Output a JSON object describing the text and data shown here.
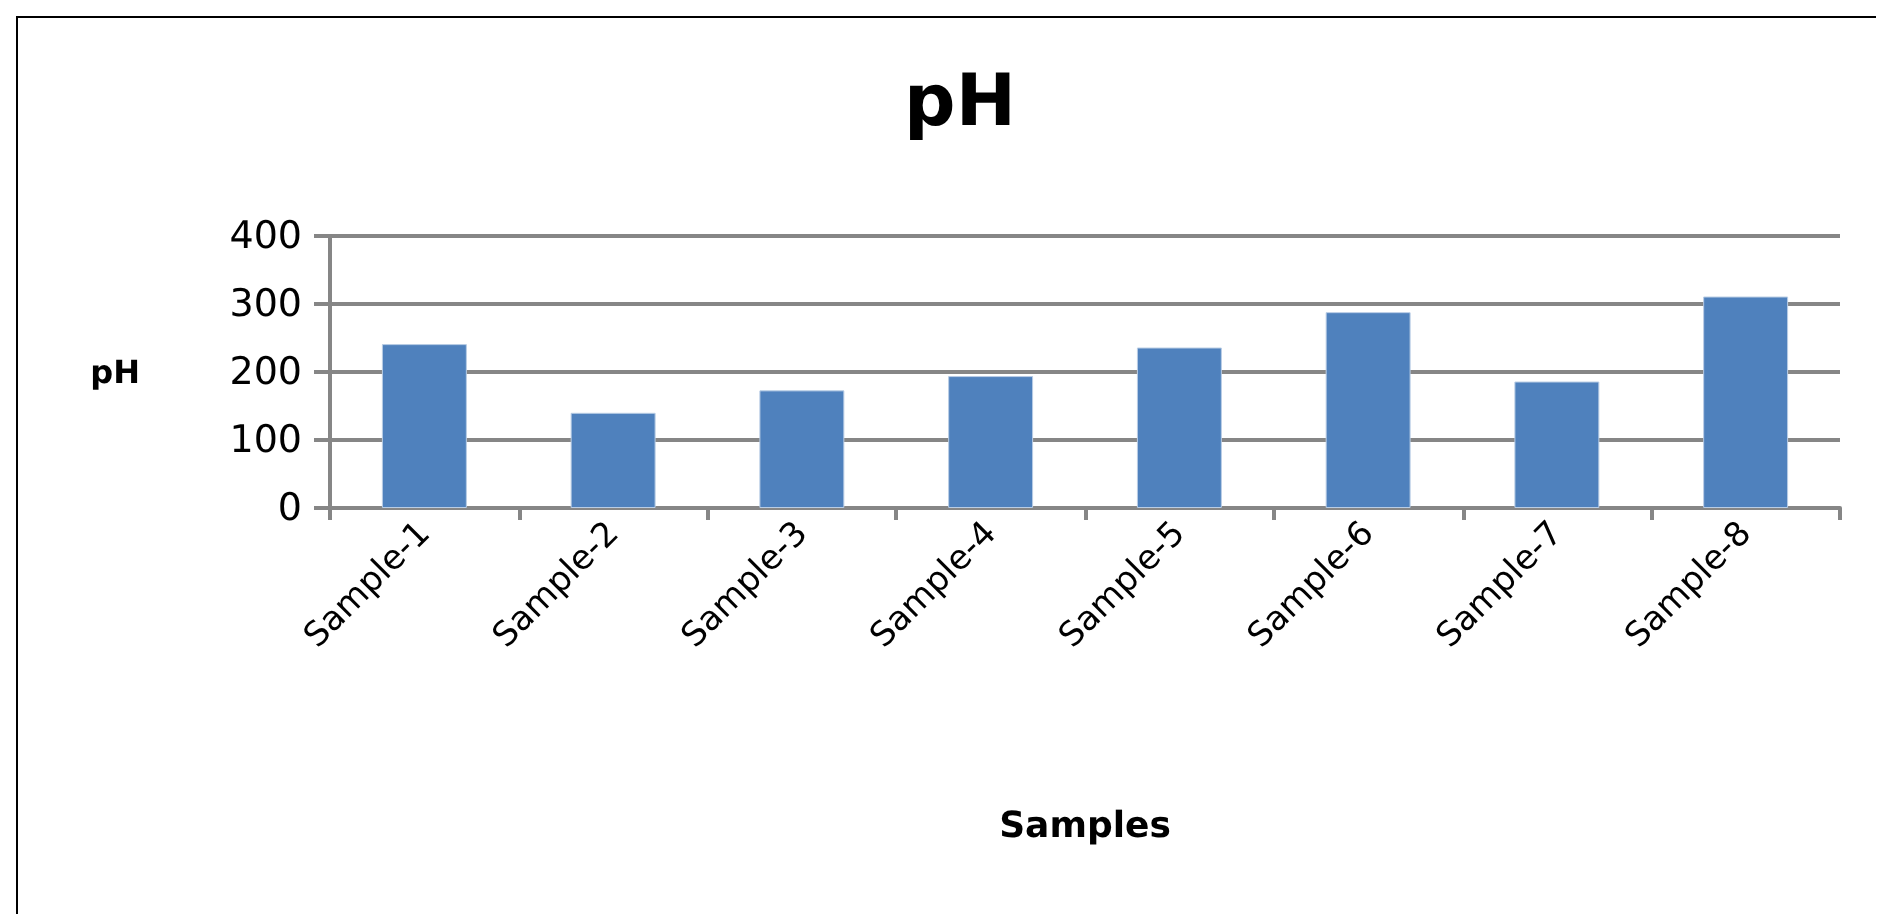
{
  "chart_data": {
    "type": "bar",
    "title": "pH",
    "xlabel": "Samples",
    "ylabel": "pH",
    "categories": [
      "Sample-1",
      "Sample-2",
      "Sample-3",
      "Sample-4",
      "Sample-5",
      "Sample-6",
      "Sample-7",
      "Sample-8"
    ],
    "values": [
      241,
      140,
      173,
      194,
      236,
      288,
      186,
      311
    ],
    "color": "#4f81bd",
    "ylim": [
      0,
      400
    ],
    "yticks": [
      0,
      100,
      200,
      300,
      400
    ],
    "grid": "y"
  }
}
